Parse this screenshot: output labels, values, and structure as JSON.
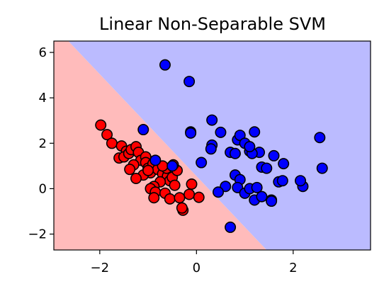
{
  "chart_data": {
    "type": "scatter",
    "title": "Linear Non-Separable SVM",
    "xlabel": "",
    "ylabel": "",
    "xlim": [
      -2.95,
      3.6
    ],
    "ylim": [
      -2.7,
      6.5
    ],
    "x_ticks": [
      -2,
      0,
      2
    ],
    "y_ticks": [
      -2,
      0,
      2,
      4,
      6
    ],
    "x_tick_labels": [
      "−2",
      "0",
      "2"
    ],
    "y_tick_labels": [
      "−2",
      "0",
      "2",
      "4",
      "6"
    ],
    "grid": false,
    "legend": "none",
    "decision_boundary": {
      "points": [
        [
          -2.65,
          6.5
        ],
        [
          1.45,
          -2.7
        ]
      ],
      "region_colors": {
        "class_0": "#ffbbbb",
        "class_1": "#bbbbff"
      }
    },
    "series": [
      {
        "color": "#ff0000",
        "points": [
          [
            -1.98,
            2.8
          ],
          [
            -1.85,
            2.38
          ],
          [
            -1.75,
            2.0
          ],
          [
            -1.55,
            1.88
          ],
          [
            -1.45,
            1.65
          ],
          [
            -1.6,
            1.35
          ],
          [
            -1.5,
            1.4
          ],
          [
            -1.4,
            1.55
          ],
          [
            -1.35,
            1.72
          ],
          [
            -1.25,
            1.85
          ],
          [
            -1.2,
            1.6
          ],
          [
            -1.15,
            1.25
          ],
          [
            -1.05,
            1.4
          ],
          [
            -1.3,
            1.05
          ],
          [
            -1.38,
            0.85
          ],
          [
            -1.05,
            1.15
          ],
          [
            -1.0,
            0.9
          ],
          [
            -0.95,
            0.7
          ],
          [
            -1.1,
            0.6
          ],
          [
            -1.25,
            0.45
          ],
          [
            -0.9,
            1.1
          ],
          [
            -0.8,
            0.85
          ],
          [
            -0.7,
            0.65
          ],
          [
            -0.6,
            0.55
          ],
          [
            -0.55,
            0.35
          ],
          [
            -0.75,
            0.3
          ],
          [
            -0.88,
            0.1
          ],
          [
            -0.95,
            0.0
          ],
          [
            -0.85,
            -0.15
          ],
          [
            -0.88,
            -0.4
          ],
          [
            -0.65,
            -0.2
          ],
          [
            -0.5,
            0.5
          ],
          [
            -0.45,
            0.15
          ],
          [
            -0.4,
            0.8
          ],
          [
            -0.62,
            0.9
          ],
          [
            -0.7,
            1.0
          ],
          [
            -0.55,
            -0.45
          ],
          [
            -0.35,
            -0.4
          ],
          [
            -0.28,
            -0.95
          ],
          [
            -0.15,
            -0.25
          ],
          [
            -0.1,
            0.2
          ],
          [
            0.05,
            -0.38
          ],
          [
            -0.48,
            1.05
          ],
          [
            -0.3,
            -0.85
          ],
          [
            -1.0,
            0.8
          ]
        ]
      },
      {
        "color": "#0000ff",
        "points": [
          [
            -0.65,
            5.45
          ],
          [
            -0.15,
            4.72
          ],
          [
            -1.1,
            2.6
          ],
          [
            -0.12,
            2.5
          ],
          [
            -0.12,
            2.45
          ],
          [
            0.32,
            3.02
          ],
          [
            0.32,
            1.92
          ],
          [
            0.5,
            2.48
          ],
          [
            0.3,
            1.75
          ],
          [
            0.1,
            1.15
          ],
          [
            0.7,
            1.6
          ],
          [
            0.8,
            1.55
          ],
          [
            0.85,
            2.15
          ],
          [
            0.9,
            2.35
          ],
          [
            1.0,
            2.0
          ],
          [
            1.1,
            1.65
          ],
          [
            1.2,
            2.5
          ],
          [
            1.3,
            1.6
          ],
          [
            1.15,
            1.55
          ],
          [
            1.1,
            1.85
          ],
          [
            1.35,
            0.95
          ],
          [
            1.45,
            0.9
          ],
          [
            1.6,
            1.45
          ],
          [
            1.8,
            1.1
          ],
          [
            1.7,
            0.3
          ],
          [
            1.78,
            0.35
          ],
          [
            2.2,
            0.1
          ],
          [
            2.15,
            0.35
          ],
          [
            2.55,
            2.25
          ],
          [
            2.6,
            0.9
          ],
          [
            0.8,
            0.6
          ],
          [
            0.9,
            0.4
          ],
          [
            0.85,
            0.05
          ],
          [
            0.6,
            0.1
          ],
          [
            1.0,
            -0.2
          ],
          [
            1.1,
            0.0
          ],
          [
            1.25,
            0.05
          ],
          [
            1.2,
            -0.5
          ],
          [
            1.35,
            -0.35
          ],
          [
            1.55,
            -0.5
          ],
          [
            1.55,
            -0.55
          ],
          [
            0.45,
            -0.15
          ],
          [
            0.7,
            -1.7
          ],
          [
            -0.85,
            1.25
          ],
          [
            -0.5,
            1.0
          ]
        ]
      }
    ]
  }
}
